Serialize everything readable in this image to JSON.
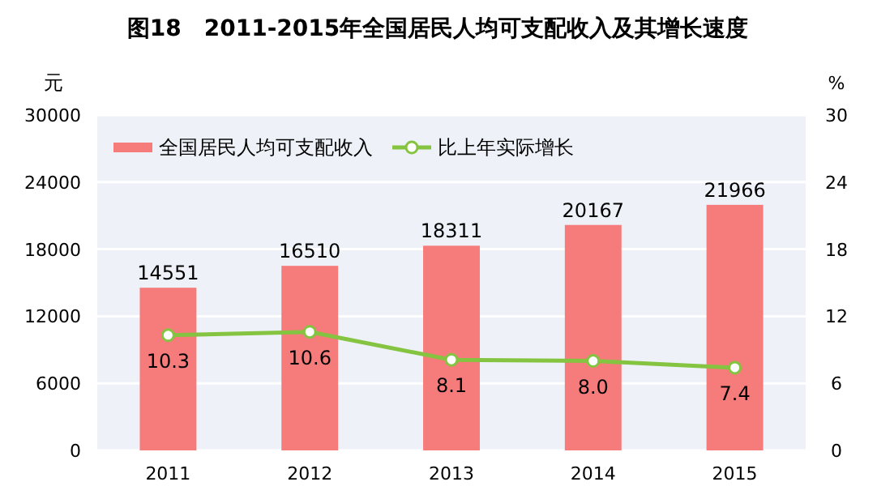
{
  "chart_data": {
    "type": "bar",
    "title": "图18　2011-2015年全国居民人均可支配收入及其增长速度",
    "ylabel": "元",
    "y2label": "%",
    "categories": [
      "2011",
      "2012",
      "2013",
      "2014",
      "2015"
    ],
    "series": [
      {
        "name": "全国居民人均可支配收入",
        "color": "#f67b7b",
        "values": [
          14551,
          16510,
          18311,
          20167,
          21966
        ],
        "value_labels": [
          "14551",
          "16510",
          "18311",
          "20167",
          "21966"
        ]
      },
      {
        "name": "比上年实际增长",
        "type": "line",
        "axis": "y2",
        "color": "#84c441",
        "values": [
          10.3,
          10.6,
          8.1,
          8.0,
          7.4
        ],
        "value_labels": [
          "10.3",
          "10.6",
          "8.1",
          "8.0",
          "7.4"
        ]
      }
    ],
    "ylim": [
      0,
      30000
    ],
    "yticks": [
      0,
      6000,
      12000,
      18000,
      24000,
      30000
    ],
    "y2lim": [
      0,
      30
    ],
    "y2ticks": [
      0,
      6,
      12,
      18,
      24,
      30
    ],
    "grid": "y",
    "legend": "top left",
    "marker": "circle"
  }
}
